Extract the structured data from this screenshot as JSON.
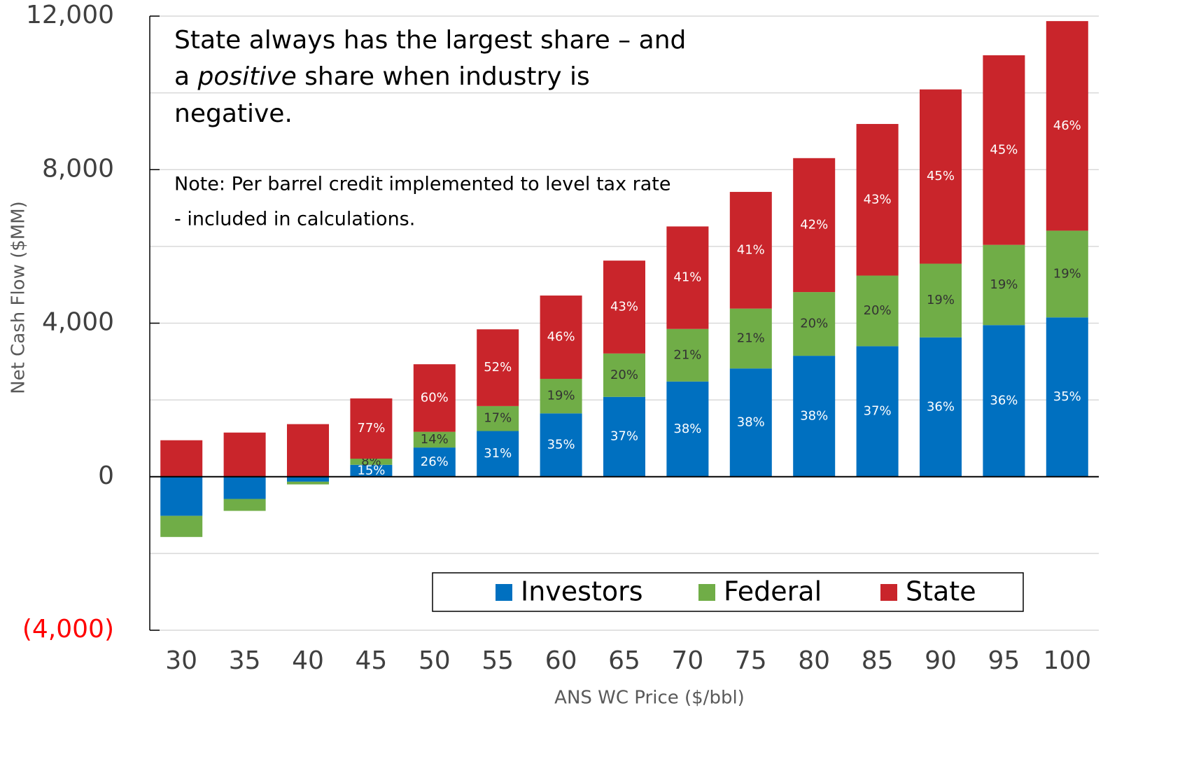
{
  "chart_data": {
    "type": "stacked_bar",
    "annotation": [
      "State always has the largest share – and",
      "a ",
      "positive",
      " share when industry is",
      "negative."
    ],
    "note": [
      "Note: Per barrel credit implemented to level tax rate",
      "- included in calculations."
    ],
    "x_label": "ANS WC Price ($/bbl)",
    "y_label": "Net Cash Flow ($MM)",
    "categories": [
      "30",
      "35",
      "40",
      "45",
      "50",
      "55",
      "60",
      "65",
      "70",
      "75",
      "80",
      "85",
      "90",
      "95",
      "100"
    ],
    "series": [
      {
        "name": "Investors",
        "color": "#0070c0",
        "values": [
          -1020,
          -580,
          -130,
          310,
          760,
          1190,
          1650,
          2080,
          2480,
          2820,
          3150,
          3400,
          3630,
          3950,
          4150
        ],
        "value_labels": [
          null,
          null,
          null,
          "15%",
          "26%",
          "31%",
          "35%",
          "37%",
          "38%",
          "38%",
          "38%",
          "37%",
          "36%",
          "36%",
          "35%"
        ]
      },
      {
        "name": "Federal",
        "color": "#70ad47",
        "values": [
          -550,
          -310,
          -70,
          160,
          410,
          650,
          900,
          1130,
          1370,
          1560,
          1660,
          1840,
          1920,
          2090,
          2260
        ],
        "value_labels": [
          null,
          null,
          null,
          "8%",
          "14%",
          "17%",
          "19%",
          "20%",
          "21%",
          "21%",
          "20%",
          "20%",
          "19%",
          "19%",
          "19%"
        ]
      },
      {
        "name": "State",
        "color": "#c9252b",
        "values": [
          950,
          1150,
          1370,
          1570,
          1760,
          2000,
          2170,
          2420,
          2670,
          3040,
          3490,
          3950,
          4540,
          4940,
          5460
        ],
        "value_labels": [
          null,
          null,
          null,
          "77%",
          "60%",
          "52%",
          "46%",
          "43%",
          "41%",
          "41%",
          "42%",
          "43%",
          "45%",
          "45%",
          "46%"
        ]
      }
    ],
    "ylim": [
      -4000,
      12000
    ],
    "yticks": [
      {
        "value": -4000,
        "label": "(4,000)"
      },
      0,
      {
        "value": 4000,
        "label": "4,000"
      },
      {
        "value": 8000,
        "label": "8,000"
      },
      {
        "value": 12000,
        "label": "12,000"
      }
    ],
    "ygrid": [
      -2000,
      2000,
      6000,
      10000
    ],
    "grid": true,
    "legend": "bottom-right"
  }
}
